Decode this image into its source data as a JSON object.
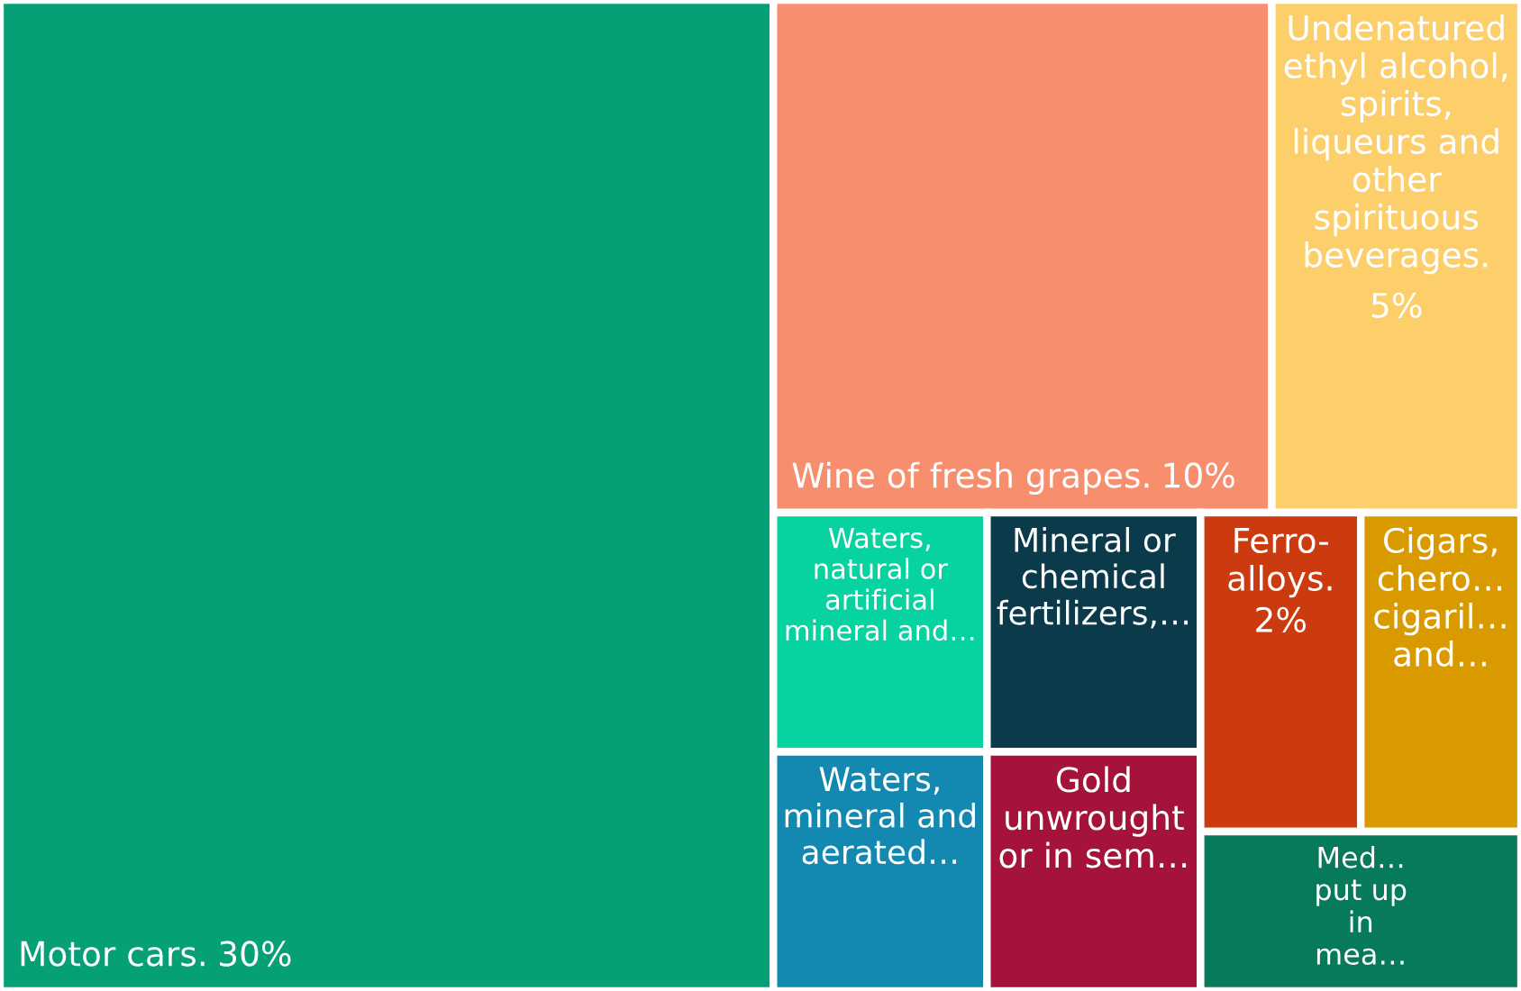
{
  "chart_data": {
    "type": "other",
    "categories": [
      "Motor cars.",
      "Wine of fresh grapes.",
      "Undenatured\nethyl alcohol,\nspirits,\nliqueurs and\nother\nspirituous\nbeverages.",
      "Waters,\nnatural or\nartificial\nmineral and…",
      "Waters,\nmineral and\naerated…",
      "Mineral or\nchemical\nfertilizers,…",
      "Gold\nunwrought\nor in sem…",
      "Ferro-\nalloys.",
      "Cigars,\nchero…\ncigaril…\nand…",
      "Med…\nput up\nin\nmea…"
    ],
    "values": [
      30,
      10,
      5,
      null,
      null,
      null,
      null,
      2,
      null,
      null
    ],
    "value_labels": [
      "30%",
      "10%",
      "5%",
      null,
      null,
      null,
      null,
      "2%",
      null,
      null
    ],
    "colors": [
      "#05a075",
      "#f78f6f",
      "#fccf6b",
      "#07d3a0",
      "#1388b1",
      "#0b3a4b",
      "#a5133a",
      "#cc3a10",
      "#d99a00",
      "#087a5c"
    ]
  }
}
